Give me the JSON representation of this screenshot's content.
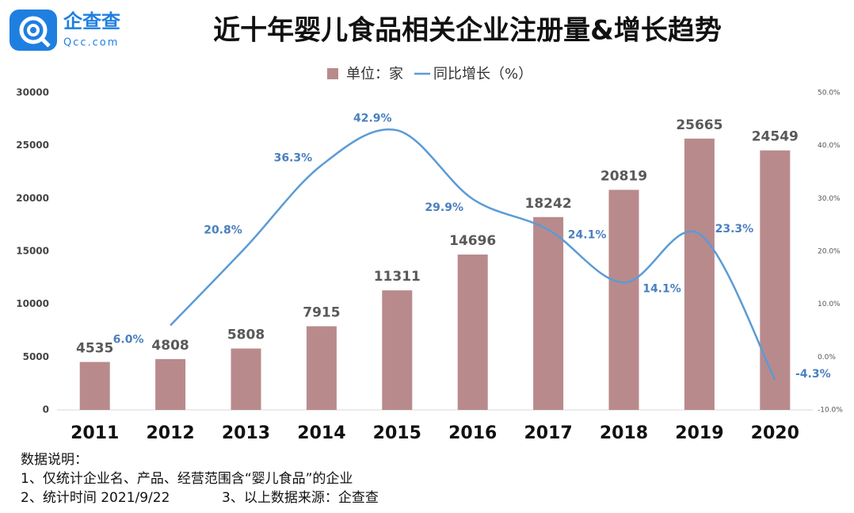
{
  "logo": {
    "name": "企查查",
    "url": "Qcc.com"
  },
  "chart_data": {
    "type": "bar",
    "title": "近十年婴儿食品相关企业注册量&增长趋势",
    "categories": [
      "2011",
      "2012",
      "2013",
      "2014",
      "2015",
      "2016",
      "2017",
      "2018",
      "2019",
      "2020"
    ],
    "series": [
      {
        "name": "单位：家",
        "color": "#b98a8c",
        "values": [
          4535,
          4808,
          5808,
          7915,
          11311,
          14696,
          18242,
          20819,
          25665,
          24549
        ]
      },
      {
        "name": "同比增长（%）",
        "color": "#5b9bd5",
        "type": "line",
        "axis": "y2",
        "values": [
          null,
          6.0,
          20.8,
          36.3,
          42.9,
          29.9,
          24.1,
          14.1,
          23.3,
          -4.3
        ],
        "value_labels": [
          null,
          "6.0%",
          "20.8%",
          "36.3%",
          "42.9%",
          "29.9%",
          "24.1%",
          "14.1%",
          "23.3%",
          "-4.3%"
        ]
      }
    ],
    "ylim": [
      0,
      30000
    ],
    "yticks": [
      0,
      5000,
      10000,
      15000,
      20000,
      25000,
      30000
    ],
    "y2lim": [
      -10,
      50
    ],
    "y2ticks": [
      {
        "value": -10,
        "label": "-10.0%"
      },
      {
        "value": 0,
        "label": "0.0%"
      },
      {
        "value": 10,
        "label": "10.0%"
      },
      {
        "value": 20,
        "label": "20.0%"
      },
      {
        "value": 30,
        "label": "30.0%"
      },
      {
        "value": 40,
        "label": "40.0%"
      },
      {
        "value": 50,
        "label": "50.0%"
      }
    ],
    "legend": "top",
    "grid": false
  },
  "notes": [
    "数据说明：",
    "1、仅统计企业名、产品、经营范围含“婴儿食品”的企业",
    "2、统计时间 2021/9/22",
    "3、以上数据来源：企查查"
  ]
}
